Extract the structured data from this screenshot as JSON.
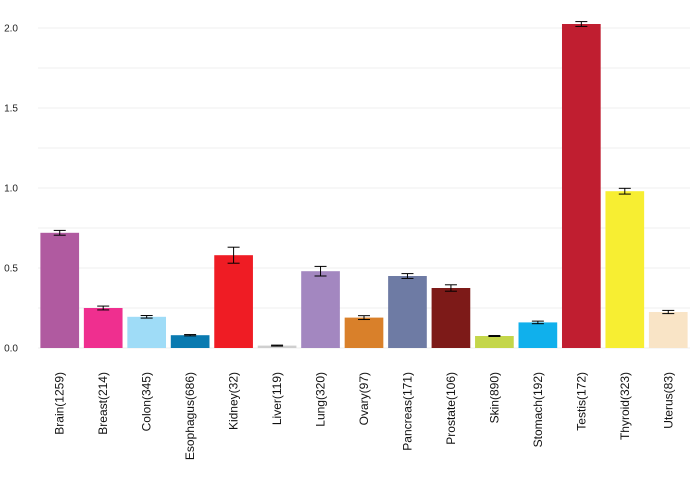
{
  "chart_data": {
    "type": "bar",
    "title": "",
    "xlabel": "",
    "ylabel": "",
    "ylim": [
      0,
      2.1
    ],
    "yticks": [
      "0.0",
      "0.5",
      "1.0",
      "1.5",
      "2.0"
    ],
    "grid": true,
    "legend": "none",
    "categories": [
      "Brain(1259)",
      "Breast(214)",
      "Colon(345)",
      "Esophagus(686)",
      "Kidney(32)",
      "Liver(119)",
      "Lung(320)",
      "Ovary(97)",
      "Pancreas(171)",
      "Prostate(106)",
      "Skin(890)",
      "Stomach(192)",
      "Testis(172)",
      "Thyroid(323)",
      "Uterus(83)"
    ],
    "values": [
      0.72,
      0.25,
      0.195,
      0.08,
      0.58,
      0.015,
      0.48,
      0.19,
      0.45,
      0.375,
      0.075,
      0.16,
      2.025,
      0.98,
      0.225
    ],
    "errors": [
      0.015,
      0.012,
      0.008,
      0.004,
      0.05,
      0.003,
      0.03,
      0.012,
      0.015,
      0.02,
      0.003,
      0.008,
      0.015,
      0.018,
      0.01
    ],
    "colors": [
      "#b05aa0",
      "#ef2f8f",
      "#9fdcf7",
      "#0a7ab0",
      "#ef1c24",
      "#cfcfcf",
      "#a387c0",
      "#d9802a",
      "#6e7ba4",
      "#7d1a18",
      "#c4d64a",
      "#10b0ec",
      "#c01e30",
      "#f7ee32",
      "#f9e4c6"
    ]
  }
}
